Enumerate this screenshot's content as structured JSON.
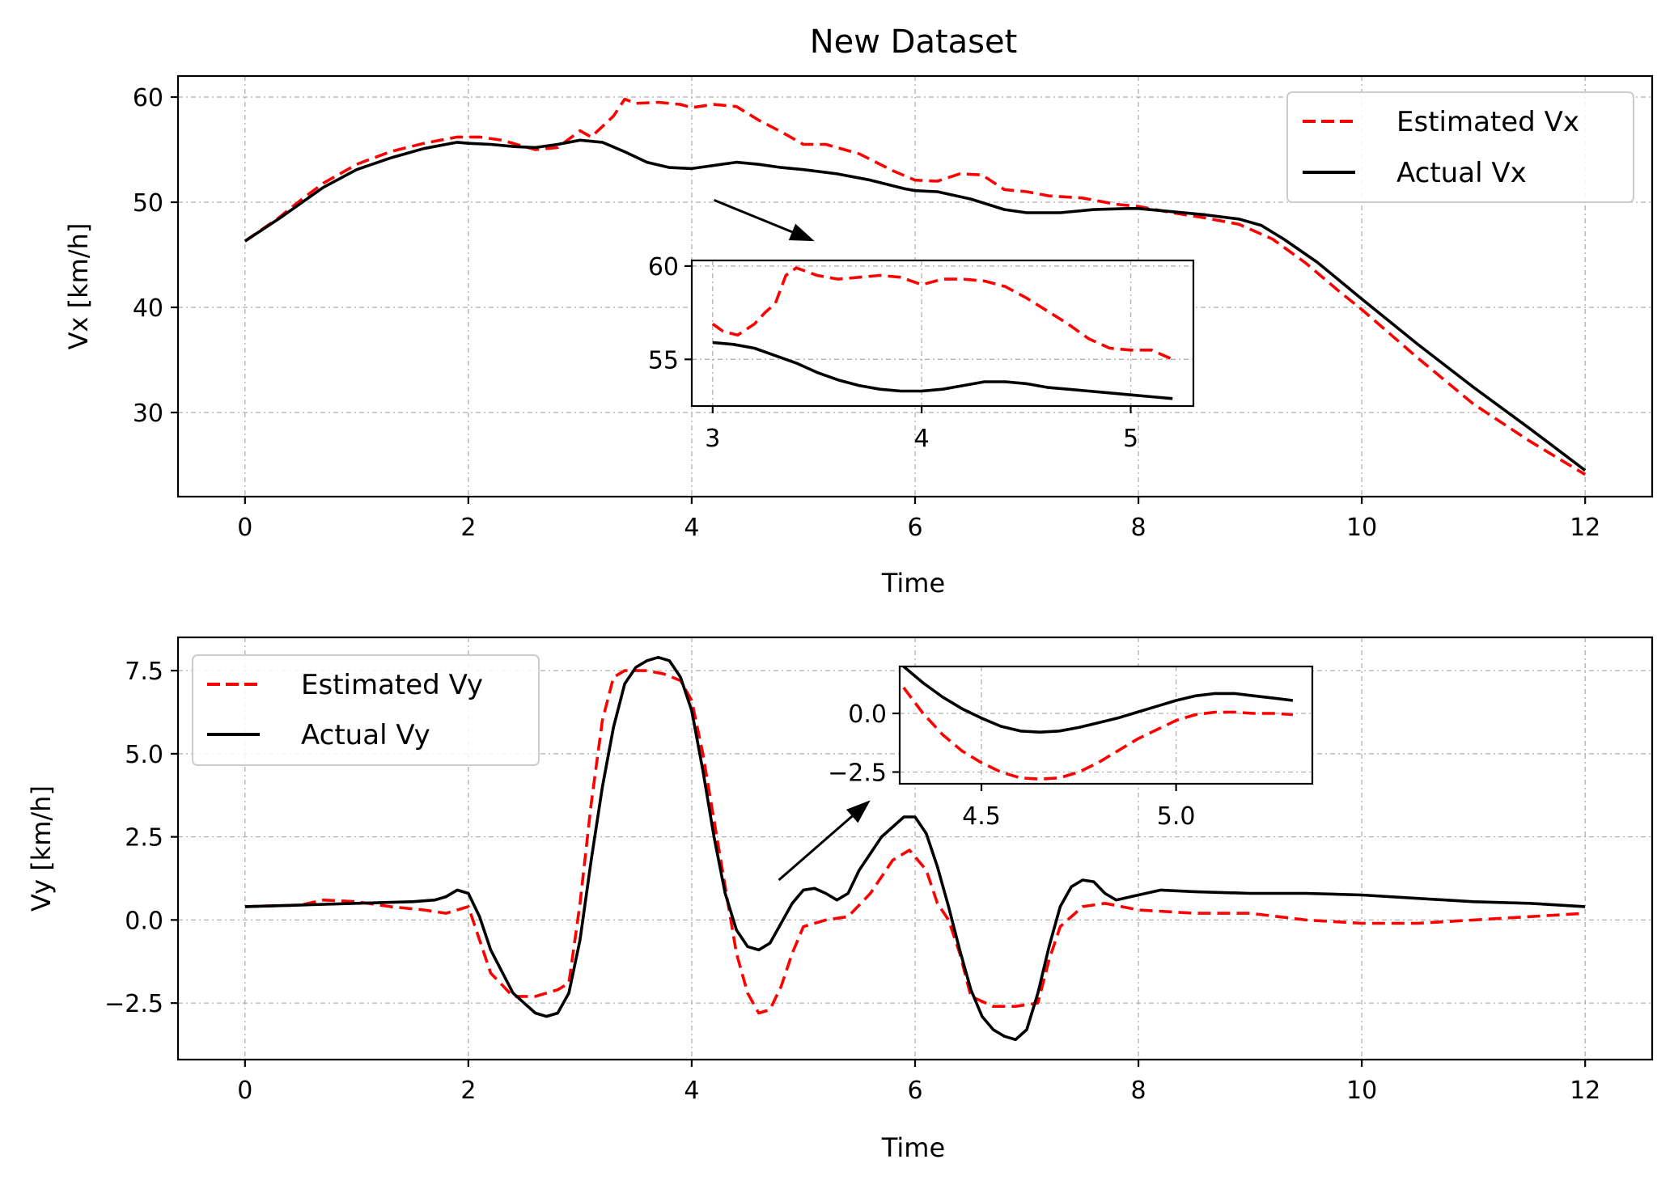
{
  "figure_title": "New Dataset",
  "colors": {
    "estimated": "#ff0000",
    "actual": "#000000"
  },
  "chart_data": [
    {
      "type": "line",
      "title": "New Dataset",
      "xlabel": "Time",
      "ylabel": "Vx [km/h]",
      "xlim": [
        -0.6,
        12.6
      ],
      "ylim": [
        22,
        62
      ],
      "xticks": [
        0,
        2,
        4,
        6,
        8,
        10,
        12
      ],
      "xtick_labels": [
        "0",
        "2",
        "4",
        "6",
        "8",
        "10",
        "12"
      ],
      "yticks": [
        30,
        40,
        50,
        60
      ],
      "ytick_labels": [
        "30",
        "40",
        "50",
        "60"
      ],
      "grid": true,
      "legend_position": "top-right",
      "series": [
        {
          "name": "Estimated Vx",
          "style": "dashed",
          "color": "#ff0000",
          "x": [
            0,
            0.3,
            0.5,
            0.7,
            1.0,
            1.3,
            1.6,
            1.9,
            2.1,
            2.3,
            2.5,
            2.6,
            2.8,
            3.0,
            3.1,
            3.2,
            3.3,
            3.4,
            3.5,
            3.7,
            3.9,
            4.0,
            4.2,
            4.4,
            4.6,
            4.8,
            5.0,
            5.2,
            5.5,
            5.8,
            6.0,
            6.2,
            6.4,
            6.6,
            6.8,
            7.0,
            7.2,
            7.5,
            7.8,
            8.0,
            8.3,
            8.6,
            8.9,
            9.2,
            9.5,
            9.8,
            10.0,
            10.5,
            11.0,
            11.5,
            12.0
          ],
          "y": [
            46.3,
            48.5,
            50.2,
            51.8,
            53.6,
            54.8,
            55.6,
            56.2,
            56.2,
            55.9,
            55.3,
            55.0,
            55.2,
            56.8,
            56.2,
            57.2,
            58.2,
            59.8,
            59.4,
            59.5,
            59.3,
            59.0,
            59.3,
            59.1,
            57.8,
            56.7,
            55.5,
            55.5,
            54.6,
            53.0,
            52.1,
            52.0,
            52.7,
            52.6,
            51.2,
            51.0,
            50.6,
            50.4,
            49.8,
            49.6,
            49.0,
            48.5,
            47.9,
            46.5,
            44.2,
            41.5,
            39.8,
            35.2,
            30.8,
            27.3,
            24.1
          ]
        },
        {
          "name": "Actual Vx",
          "style": "solid",
          "color": "#000000",
          "x": [
            0,
            0.3,
            0.5,
            0.7,
            1.0,
            1.3,
            1.6,
            1.9,
            2.0,
            2.2,
            2.4,
            2.6,
            2.8,
            3.0,
            3.2,
            3.4,
            3.6,
            3.8,
            4.0,
            4.2,
            4.4,
            4.6,
            4.8,
            5.0,
            5.3,
            5.6,
            5.9,
            6.0,
            6.2,
            6.5,
            6.8,
            7.0,
            7.3,
            7.6,
            7.9,
            8.0,
            8.3,
            8.6,
            8.9,
            9.1,
            9.3,
            9.6,
            10.0,
            10.5,
            11.0,
            11.5,
            12.0
          ],
          "y": [
            46.3,
            48.4,
            49.9,
            51.4,
            53.1,
            54.2,
            55.1,
            55.7,
            55.6,
            55.5,
            55.3,
            55.2,
            55.5,
            55.9,
            55.7,
            54.8,
            53.8,
            53.3,
            53.2,
            53.5,
            53.8,
            53.6,
            53.3,
            53.1,
            52.7,
            52.1,
            51.3,
            51.1,
            51.0,
            50.3,
            49.3,
            49.0,
            49.0,
            49.3,
            49.4,
            49.4,
            49.1,
            48.8,
            48.4,
            47.8,
            46.5,
            44.3,
            40.8,
            36.5,
            32.4,
            28.5,
            24.5
          ]
        }
      ],
      "inset": {
        "xlim": [
          2.9,
          5.3
        ],
        "ylim": [
          52.5,
          60.3
        ],
        "xticks": [
          3,
          4,
          5
        ],
        "xtick_labels": [
          "3",
          "4",
          "5"
        ],
        "yticks": [
          55,
          60
        ],
        "ytick_labels": [
          "55",
          "60"
        ],
        "series": [
          {
            "name": "Estimated Vx",
            "x": [
              3.0,
              3.05,
              3.12,
              3.2,
              3.25,
              3.3,
              3.35,
              3.4,
              3.5,
              3.6,
              3.7,
              3.8,
              3.9,
              4.0,
              4.1,
              4.2,
              4.3,
              4.4,
              4.5,
              4.6,
              4.7,
              4.8,
              4.9,
              5.0,
              5.1,
              5.2
            ],
            "y": [
              56.9,
              56.5,
              56.3,
              56.9,
              57.5,
              58.0,
              59.5,
              59.9,
              59.5,
              59.3,
              59.4,
              59.5,
              59.4,
              59.0,
              59.3,
              59.3,
              59.2,
              58.9,
              58.3,
              57.6,
              56.9,
              56.1,
              55.6,
              55.5,
              55.5,
              55.0
            ]
          },
          {
            "name": "Actual Vx",
            "x": [
              3.0,
              3.1,
              3.2,
              3.3,
              3.4,
              3.5,
              3.6,
              3.7,
              3.8,
              3.9,
              4.0,
              4.1,
              4.2,
              4.3,
              4.4,
              4.5,
              4.6,
              4.7,
              4.8,
              4.9,
              5.0,
              5.1,
              5.2
            ],
            "y": [
              55.9,
              55.8,
              55.6,
              55.2,
              54.8,
              54.3,
              53.9,
              53.6,
              53.4,
              53.3,
              53.3,
              53.4,
              53.6,
              53.8,
              53.8,
              53.7,
              53.5,
              53.4,
              53.3,
              53.2,
              53.1,
              53.0,
              52.9
            ]
          }
        ],
        "arrow": {
          "from": [
            4.2,
            50.2
          ],
          "to": [
            5.1,
            46.3
          ]
        }
      }
    },
    {
      "type": "line",
      "title": "",
      "xlabel": "Time",
      "ylabel": "Vy [km/h]",
      "xlim": [
        -0.6,
        12.6
      ],
      "ylim": [
        -4.2,
        8.5
      ],
      "xticks": [
        0,
        2,
        4,
        6,
        8,
        10,
        12
      ],
      "xtick_labels": [
        "0",
        "2",
        "4",
        "6",
        "8",
        "10",
        "12"
      ],
      "yticks": [
        -2.5,
        0.0,
        2.5,
        5.0,
        7.5
      ],
      "ytick_labels": [
        "−2.5",
        "0.0",
        "2.5",
        "5.0",
        "7.5"
      ],
      "grid": true,
      "legend_position": "top-left",
      "series": [
        {
          "name": "Estimated Vy",
          "style": "dashed",
          "color": "#ff0000",
          "x": [
            0,
            0.5,
            0.7,
            1.0,
            1.3,
            1.6,
            1.8,
            2.0,
            2.1,
            2.2,
            2.4,
            2.6,
            2.8,
            2.9,
            3.0,
            3.1,
            3.2,
            3.3,
            3.4,
            3.6,
            3.75,
            3.9,
            4.0,
            4.1,
            4.2,
            4.3,
            4.4,
            4.5,
            4.6,
            4.7,
            4.8,
            4.9,
            5.0,
            5.2,
            5.4,
            5.6,
            5.8,
            5.95,
            6.1,
            6.2,
            6.3,
            6.4,
            6.5,
            6.7,
            6.9,
            7.1,
            7.2,
            7.3,
            7.5,
            7.7,
            8.0,
            8.5,
            9.0,
            9.5,
            10.0,
            10.5,
            11.0,
            11.5,
            12.0
          ],
          "y": [
            0.4,
            0.45,
            0.6,
            0.55,
            0.4,
            0.3,
            0.2,
            0.4,
            -0.6,
            -1.6,
            -2.3,
            -2.3,
            -2.1,
            -1.9,
            0.5,
            3.5,
            6.0,
            7.3,
            7.5,
            7.5,
            7.4,
            7.2,
            6.6,
            5.0,
            3.0,
            1.0,
            -1.0,
            -2.2,
            -2.8,
            -2.7,
            -2.0,
            -1.0,
            -0.2,
            0.0,
            0.1,
            0.8,
            1.8,
            2.1,
            1.5,
            0.5,
            0.0,
            -1.0,
            -2.3,
            -2.6,
            -2.6,
            -2.5,
            -1.2,
            -0.2,
            0.4,
            0.5,
            0.3,
            0.2,
            0.2,
            0.0,
            -0.1,
            -0.1,
            0.0,
            0.1,
            0.2
          ]
        },
        {
          "name": "Actual Vy",
          "style": "solid",
          "color": "#000000",
          "x": [
            0,
            0.5,
            1.0,
            1.5,
            1.7,
            1.8,
            1.9,
            2.0,
            2.1,
            2.2,
            2.4,
            2.6,
            2.7,
            2.8,
            2.9,
            3.0,
            3.1,
            3.2,
            3.3,
            3.4,
            3.5,
            3.6,
            3.7,
            3.8,
            3.9,
            4.0,
            4.1,
            4.2,
            4.3,
            4.4,
            4.5,
            4.6,
            4.7,
            4.8,
            4.9,
            5.0,
            5.1,
            5.2,
            5.3,
            5.4,
            5.5,
            5.7,
            5.9,
            6.0,
            6.1,
            6.2,
            6.3,
            6.4,
            6.5,
            6.6,
            6.7,
            6.8,
            6.9,
            7.0,
            7.1,
            7.2,
            7.3,
            7.4,
            7.5,
            7.6,
            7.7,
            7.8,
            8.0,
            8.2,
            8.5,
            9.0,
            9.5,
            10.0,
            10.5,
            11.0,
            11.5,
            12.0
          ],
          "y": [
            0.4,
            0.45,
            0.5,
            0.55,
            0.6,
            0.7,
            0.9,
            0.8,
            0.1,
            -0.9,
            -2.2,
            -2.8,
            -2.9,
            -2.8,
            -2.2,
            -0.6,
            1.8,
            4.0,
            5.8,
            7.1,
            7.6,
            7.8,
            7.9,
            7.8,
            7.3,
            6.3,
            4.5,
            2.5,
            0.8,
            -0.3,
            -0.8,
            -0.9,
            -0.7,
            -0.1,
            0.5,
            0.9,
            0.95,
            0.8,
            0.6,
            0.8,
            1.5,
            2.5,
            3.1,
            3.1,
            2.6,
            1.6,
            0.4,
            -0.9,
            -2.1,
            -2.9,
            -3.3,
            -3.5,
            -3.6,
            -3.3,
            -2.2,
            -0.8,
            0.4,
            1.0,
            1.2,
            1.15,
            0.8,
            0.6,
            0.75,
            0.9,
            0.85,
            0.8,
            0.8,
            0.75,
            0.65,
            0.55,
            0.5,
            0.4
          ]
        }
      ],
      "inset": {
        "xlim": [
          4.29,
          5.35
        ],
        "ylim": [
          -3.0,
          2.0
        ],
        "xticks": [
          4.5,
          5.0
        ],
        "xtick_labels": [
          "4.5",
          "5.0"
        ],
        "yticks": [
          -2.5,
          0.0
        ],
        "ytick_labels": [
          "−2.5",
          "0.0"
        ],
        "series": [
          {
            "name": "Estimated Vy",
            "x": [
              4.3,
              4.35,
              4.4,
              4.45,
              4.5,
              4.55,
              4.6,
              4.65,
              4.7,
              4.75,
              4.8,
              4.85,
              4.9,
              4.95,
              5.0,
              5.05,
              5.1,
              5.15,
              5.2,
              5.25,
              5.3
            ],
            "y": [
              1.1,
              0.0,
              -0.9,
              -1.6,
              -2.1,
              -2.5,
              -2.75,
              -2.8,
              -2.75,
              -2.5,
              -2.1,
              -1.6,
              -1.1,
              -0.7,
              -0.3,
              -0.05,
              0.05,
              0.05,
              0.0,
              0.0,
              -0.05
            ]
          },
          {
            "name": "Actual Vy",
            "x": [
              4.3,
              4.35,
              4.4,
              4.45,
              4.5,
              4.55,
              4.6,
              4.65,
              4.7,
              4.75,
              4.8,
              4.85,
              4.9,
              4.95,
              5.0,
              5.05,
              5.1,
              5.15,
              5.2,
              5.25,
              5.3
            ],
            "y": [
              2.0,
              1.3,
              0.7,
              0.2,
              -0.2,
              -0.55,
              -0.75,
              -0.8,
              -0.75,
              -0.6,
              -0.4,
              -0.2,
              0.05,
              0.3,
              0.55,
              0.75,
              0.85,
              0.85,
              0.75,
              0.65,
              0.55
            ]
          }
        ],
        "arrow": {
          "from": [
            4.78,
            1.2
          ],
          "to": [
            5.6,
            3.6
          ]
        }
      }
    }
  ]
}
